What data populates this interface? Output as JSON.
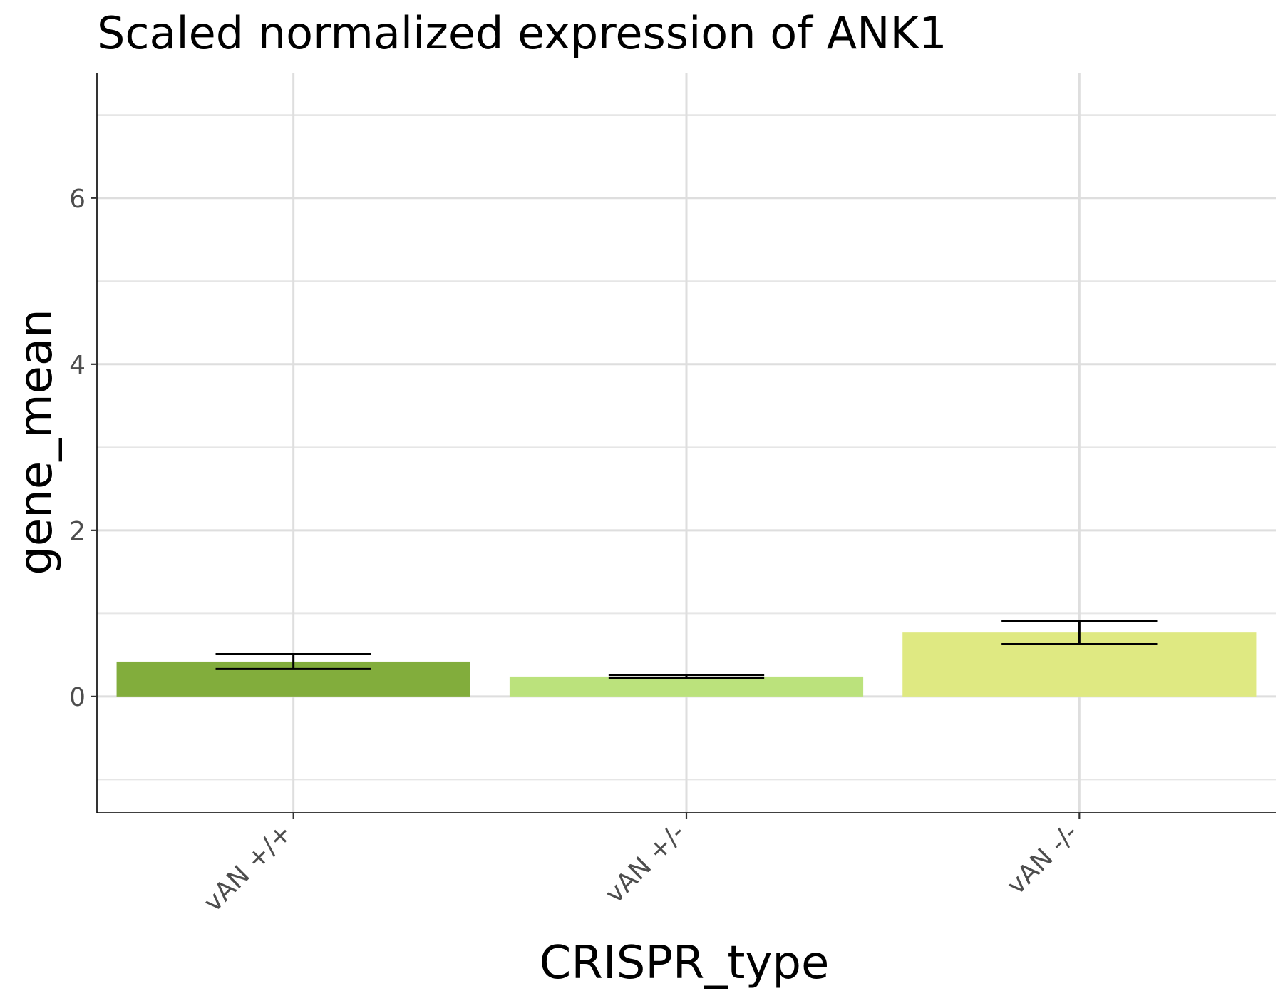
{
  "chart_data": {
    "type": "bar",
    "title": "Scaled normalized expression of ANK1",
    "xlabel": "CRISPR_type",
    "ylabel": "gene_mean",
    "categories": [
      "vAN +/+",
      "vAN +/-",
      "vAN -/-"
    ],
    "values": [
      0.42,
      0.24,
      0.77
    ],
    "error": [
      {
        "low": 0.33,
        "high": 0.51
      },
      {
        "low": 0.22,
        "high": 0.26
      },
      {
        "low": 0.63,
        "high": 0.91
      }
    ],
    "colors": [
      "#82ad3c",
      "#bbe27c",
      "#dfe982"
    ],
    "ylim": [
      -1.4,
      7.5
    ],
    "y_ticks": [
      0,
      2,
      4,
      6
    ],
    "y_tick_labels": [
      "0",
      "2",
      "4",
      "6"
    ],
    "y_minor_ticks": [
      -1,
      1,
      3,
      5,
      7
    ],
    "grid": true,
    "legend": "none"
  }
}
